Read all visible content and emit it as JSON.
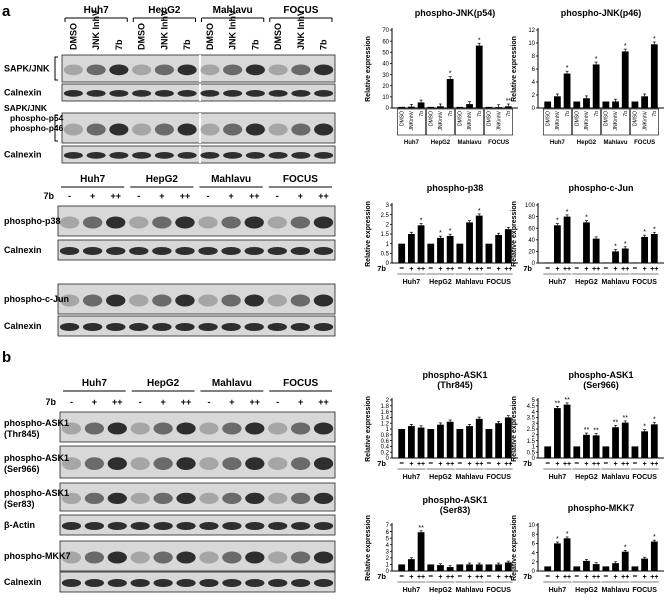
{
  "panels": {
    "a": "a",
    "b": "b"
  },
  "blots": [
    {
      "id": "a1",
      "groups": [
        "Huh7",
        "HepG2",
        "Mahlavu",
        "FOCUS"
      ],
      "lane_labels": [
        "DMSO",
        "JNK InhV",
        "7b",
        "DMSO",
        "JNK InhV",
        "7b",
        "DMSO",
        "JNK InhV",
        "7b",
        "DMSO",
        "JNK InhV",
        "7b"
      ],
      "rows": [
        {
          "label": "SAPK/JNK",
          "bracket": true
        },
        {
          "label": "Calnexin"
        },
        {
          "label": "SAPK/JNK",
          "sublabels": [
            "phospho-p54",
            "phospho-p46"
          ],
          "bracket": true
        },
        {
          "label": "Calnexin"
        }
      ]
    },
    {
      "id": "a2",
      "treatment_label": "7b",
      "groups": [
        "Huh7",
        "HepG2",
        "Mahlavu",
        "FOCUS"
      ],
      "treatment_levels": [
        "-",
        "+",
        "++",
        "-",
        "+",
        "++",
        "-",
        "+",
        "++",
        "-",
        "+",
        "++"
      ],
      "rows": [
        {
          "label": "phospho-p38"
        },
        {
          "label": "Calnexin"
        },
        {
          "label": "phospho-c-Jun"
        },
        {
          "label": "Calnexin"
        }
      ]
    },
    {
      "id": "b1",
      "treatment_label": "7b",
      "groups": [
        "Huh7",
        "HepG2",
        "Mahlavu",
        "FOCUS"
      ],
      "treatment_levels": [
        "-",
        "+",
        "++",
        "-",
        "+",
        "++",
        "-",
        "+",
        "++",
        "-",
        "+",
        "++"
      ],
      "rows": [
        {
          "label": "phospho-ASK1",
          "sublabel": "(Thr845)"
        },
        {
          "label": "phospho-ASK1",
          "sublabel": "(Ser966)"
        },
        {
          "label": "phospho-ASK1",
          "sublabel": "(Ser83)"
        },
        {
          "label": "β-Actin"
        },
        {
          "label": "phospho-MKK7"
        },
        {
          "label": "Calnexin"
        }
      ]
    }
  ],
  "chart_data": [
    {
      "type": "bar",
      "title": "phospho-JNK(p54)",
      "ylabel": "Relative expression",
      "ylim": [
        0,
        70
      ],
      "yticks": [
        0,
        10,
        20,
        30,
        40,
        50,
        60,
        70
      ],
      "categories": [
        "DMSO",
        "JNKinhV",
        "7b",
        "DMSO",
        "JNKinhV",
        "7b",
        "DMSO",
        "JNKinhV",
        "7b",
        "DMSO",
        "JNKinhV",
        "7b"
      ],
      "groups": [
        "Huh7",
        "HepG2",
        "Mahlavu",
        "FOCUS"
      ],
      "values": [
        1,
        1.2,
        5,
        1,
        1.5,
        26,
        1,
        3.5,
        56,
        1,
        0.8,
        1.5
      ],
      "significance": [
        "",
        "",
        "",
        "",
        "",
        "*",
        "",
        "",
        "*",
        "",
        "",
        "**"
      ]
    },
    {
      "type": "bar",
      "title": "phospho-JNK(p46)",
      "ylabel": "Relative expression",
      "ylim": [
        0,
        12
      ],
      "yticks": [
        0,
        2,
        4,
        6,
        8,
        10,
        12
      ],
      "categories": [
        "DMSO",
        "JNKinhV",
        "7b",
        "DMSO",
        "JNKinhV",
        "7b",
        "DMSO",
        "JNKinhV",
        "7b",
        "DMSO",
        "JNKinhV",
        "7b"
      ],
      "groups": [
        "Huh7",
        "HepG2",
        "Mahlavu",
        "FOCUS"
      ],
      "values": [
        1,
        1.8,
        5.3,
        1,
        1.5,
        6.7,
        1,
        1,
        8.7,
        1,
        1.8,
        9.8
      ],
      "significance": [
        "",
        "",
        "*",
        "",
        "",
        "*",
        "",
        "",
        "*",
        "",
        "",
        "*"
      ]
    },
    {
      "type": "bar",
      "title": "phospho-p38",
      "ylabel": "Relative expression",
      "ylim": [
        0,
        3
      ],
      "yticks": [
        0,
        0.5,
        1,
        1.5,
        2,
        2.5,
        3
      ],
      "treatment_label": "7b",
      "categories": [
        "-",
        "+",
        "++",
        "-",
        "+",
        "++",
        "-",
        "+",
        "++",
        "-",
        "+",
        "++"
      ],
      "groups": [
        "Huh7",
        "HepG2",
        "Mahlavu",
        "FOCUS"
      ],
      "values": [
        1,
        1.5,
        1.95,
        1,
        1.3,
        1.4,
        1,
        2.1,
        2.45,
        1,
        1.45,
        1.75
      ],
      "significance": [
        "",
        "",
        "*",
        "",
        "*",
        "*",
        "",
        "",
        "*",
        "",
        "",
        ""
      ]
    },
    {
      "type": "bar",
      "title": "phospho-c-Jun",
      "ylabel": "Relative expression",
      "ylim": [
        0,
        100
      ],
      "yticks": [
        0,
        20,
        40,
        60,
        80,
        100
      ],
      "treatment_label": "7b",
      "categories": [
        "-",
        "+",
        "++",
        "-",
        "+",
        "++",
        "-",
        "+",
        "++",
        "-",
        "+",
        "++"
      ],
      "groups": [
        "Huh7",
        "HepG2",
        "Mahlavu",
        "FOCUS"
      ],
      "values": [
        1,
        65,
        80,
        1,
        70,
        42,
        1,
        20,
        25,
        1,
        45,
        50
      ],
      "significance": [
        "",
        "*",
        "*",
        "",
        "*",
        "",
        "",
        "*",
        "*",
        "",
        "*",
        "*"
      ]
    },
    {
      "type": "bar",
      "title": "phospho-ASK1",
      "subtitle": "(Thr845)",
      "ylabel": "Relative expression",
      "ylim": [
        0,
        2
      ],
      "yticks": [
        0,
        0.2,
        0.4,
        0.6,
        0.8,
        1,
        1.2,
        1.4,
        1.6,
        1.8,
        2
      ],
      "treatment_label": "7b",
      "categories": [
        "-",
        "+",
        "++",
        "-",
        "+",
        "++",
        "-",
        "+",
        "++",
        "-",
        "+",
        "++"
      ],
      "groups": [
        "Huh7",
        "HepG2",
        "Mahlavu",
        "FOCUS"
      ],
      "values": [
        1,
        1.1,
        1.05,
        1,
        1.15,
        1.25,
        1,
        1.1,
        1.35,
        1,
        1.2,
        1.4
      ],
      "significance": [
        "",
        "",
        "",
        "",
        "",
        "",
        "",
        "",
        "",
        "",
        "",
        ""
      ]
    },
    {
      "type": "bar",
      "title": "phospho-ASK1",
      "subtitle": "(Ser966)",
      "ylabel": "Relative expression",
      "ylim": [
        0,
        5
      ],
      "yticks": [
        0,
        0.5,
        1,
        1.5,
        2,
        2.5,
        3,
        3.5,
        4,
        4.5,
        5
      ],
      "treatment_label": "7b",
      "categories": [
        "-",
        "+",
        "++",
        "-",
        "+",
        "++",
        "-",
        "+",
        "++",
        "-",
        "+",
        "++"
      ],
      "groups": [
        "Huh7",
        "HepG2",
        "Mahlavu",
        "FOCUS"
      ],
      "values": [
        1,
        4.3,
        4.6,
        1,
        2,
        1.95,
        1,
        2.65,
        3.05,
        1,
        2.3,
        2.9
      ],
      "significance": [
        "",
        "**",
        "**",
        "",
        "**",
        "**",
        "",
        "**",
        "**",
        "",
        "*",
        "*"
      ]
    },
    {
      "type": "bar",
      "title": "phospho-ASK1",
      "subtitle": "(Ser83)",
      "ylabel": "Relative expression",
      "ylim": [
        0,
        7
      ],
      "yticks": [
        0,
        1,
        2,
        3,
        4,
        5,
        6,
        7
      ],
      "treatment_label": "7b",
      "categories": [
        "-",
        "+",
        "++",
        "-",
        "+",
        "++",
        "-",
        "+",
        "++",
        "-",
        "+",
        "++"
      ],
      "groups": [
        "Huh7",
        "HepG2",
        "Mahlavu",
        "FOCUS"
      ],
      "values": [
        1,
        1.8,
        5.9,
        1,
        0.9,
        0.6,
        1,
        1,
        1,
        1,
        1,
        1.3
      ],
      "significance": [
        "",
        "",
        "**",
        "",
        "",
        "",
        "",
        "",
        "",
        "",
        "",
        ""
      ]
    },
    {
      "type": "bar",
      "title": "phospho-MKK7",
      "ylabel": "Relative expression",
      "ylim": [
        0,
        10
      ],
      "yticks": [
        0,
        2,
        4,
        6,
        8,
        10
      ],
      "treatment_label": "7b",
      "categories": [
        "-",
        "+",
        "++",
        "-",
        "+",
        "++",
        "-",
        "+",
        "++",
        "-",
        "+",
        "++"
      ],
      "groups": [
        "Huh7",
        "HepG2",
        "Mahlavu",
        "FOCUS"
      ],
      "values": [
        1,
        6,
        7.1,
        1,
        2.2,
        1.5,
        1,
        1.7,
        4.2,
        1,
        2.7,
        6.4
      ],
      "significance": [
        "",
        "*",
        "*",
        "",
        "",
        "",
        "",
        "",
        "*",
        "",
        "",
        "*"
      ]
    }
  ]
}
